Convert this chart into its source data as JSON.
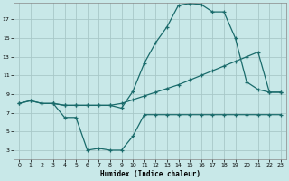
{
  "xlabel": "Humidex (Indice chaleur)",
  "bg_color": "#c8e8e8",
  "grid_color": "#a8c8c8",
  "line_color": "#1a6b6b",
  "xlim": [
    -0.5,
    23.5
  ],
  "ylim": [
    2.0,
    18.8
  ],
  "xticks": [
    0,
    1,
    2,
    3,
    4,
    5,
    6,
    7,
    8,
    9,
    10,
    11,
    12,
    13,
    14,
    15,
    16,
    17,
    18,
    19,
    20,
    21,
    22,
    23
  ],
  "yticks": [
    3,
    5,
    7,
    9,
    11,
    13,
    15,
    17
  ],
  "line1_x": [
    0,
    1,
    2,
    3,
    4,
    5,
    6,
    7,
    8,
    9,
    10,
    11,
    12,
    13,
    14,
    15,
    16,
    17,
    18,
    19,
    20,
    21,
    22,
    23
  ],
  "line1_y": [
    8.0,
    8.3,
    8.0,
    8.0,
    7.8,
    7.8,
    7.8,
    7.8,
    7.8,
    8.0,
    8.4,
    8.8,
    9.2,
    9.6,
    10.0,
    10.5,
    11.0,
    11.5,
    12.0,
    12.5,
    13.0,
    13.5,
    9.2,
    9.2
  ],
  "line2_x": [
    0,
    1,
    2,
    3,
    4,
    5,
    6,
    7,
    8,
    9,
    10,
    11,
    12,
    13,
    14,
    15,
    16,
    17,
    18,
    19,
    20,
    21,
    22,
    23
  ],
  "line2_y": [
    8.0,
    8.3,
    8.0,
    8.0,
    7.8,
    7.8,
    7.8,
    7.8,
    7.8,
    7.5,
    9.3,
    12.3,
    14.5,
    16.2,
    18.5,
    18.7,
    18.6,
    17.8,
    17.8,
    15.0,
    10.3,
    9.5,
    9.2,
    9.2
  ],
  "line3_x": [
    3,
    4,
    5,
    6,
    7,
    8,
    9,
    10,
    11,
    12,
    13,
    14,
    15,
    16,
    17,
    18,
    19,
    20,
    21,
    22,
    23
  ],
  "line3_y": [
    8.0,
    6.5,
    6.5,
    3.0,
    3.2,
    3.0,
    3.0,
    4.5,
    6.8,
    6.8,
    6.8,
    6.8,
    6.8,
    6.8,
    6.8,
    6.8,
    6.8,
    6.8,
    6.8,
    6.8,
    6.8
  ]
}
